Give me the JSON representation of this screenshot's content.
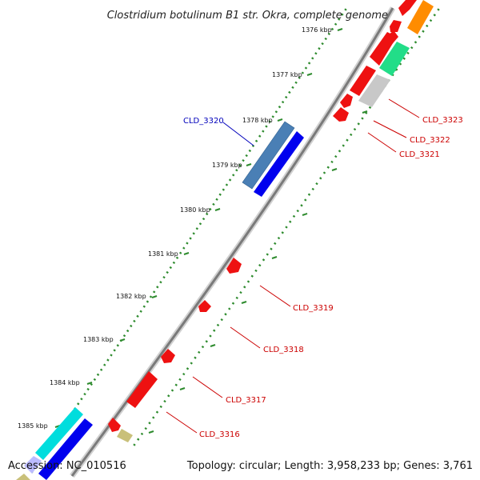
{
  "title": "Clostridium botulinum B1 str. Okra, complete genome",
  "footer": {
    "accession": "Accession: NC_010516",
    "topology": "Topology: circular; Length: 3,958,233 bp; Genes: 3,761"
  },
  "ticks": [
    "1376 kbp",
    "1377 kbp",
    "1378 kbp",
    "1379 kbp",
    "1380 kbp",
    "1381 kbp",
    "1382 kbp",
    "1383 kbp",
    "1384 kbp",
    "1385 kbp"
  ],
  "gene_labels": [
    {
      "text": "CLD_3320",
      "color": "#0000bb"
    },
    {
      "text": "CLD_3323",
      "color": "#cc0000"
    },
    {
      "text": "CLD_3322",
      "color": "#cc0000"
    },
    {
      "text": "CLD_3321",
      "color": "#cc0000"
    },
    {
      "text": "CLD_3319",
      "color": "#cc0000"
    },
    {
      "text": "CLD_3318",
      "color": "#cc0000"
    },
    {
      "text": "CLD_3317",
      "color": "#cc0000"
    },
    {
      "text": "CLD_3316",
      "color": "#cc0000"
    }
  ],
  "colors": {
    "backbone": "#8a8a8a",
    "dots": "#2e8b2e",
    "cds": "#ee1111",
    "blue": "#0000ee",
    "steelblue": "#4a7fb5",
    "cyan": "#00dddd",
    "lavender": "#bbbbff",
    "khaki": "#c9c07a",
    "orange": "#ff8c00",
    "spring": "#22dd88",
    "gray": "#c8c8c8"
  }
}
